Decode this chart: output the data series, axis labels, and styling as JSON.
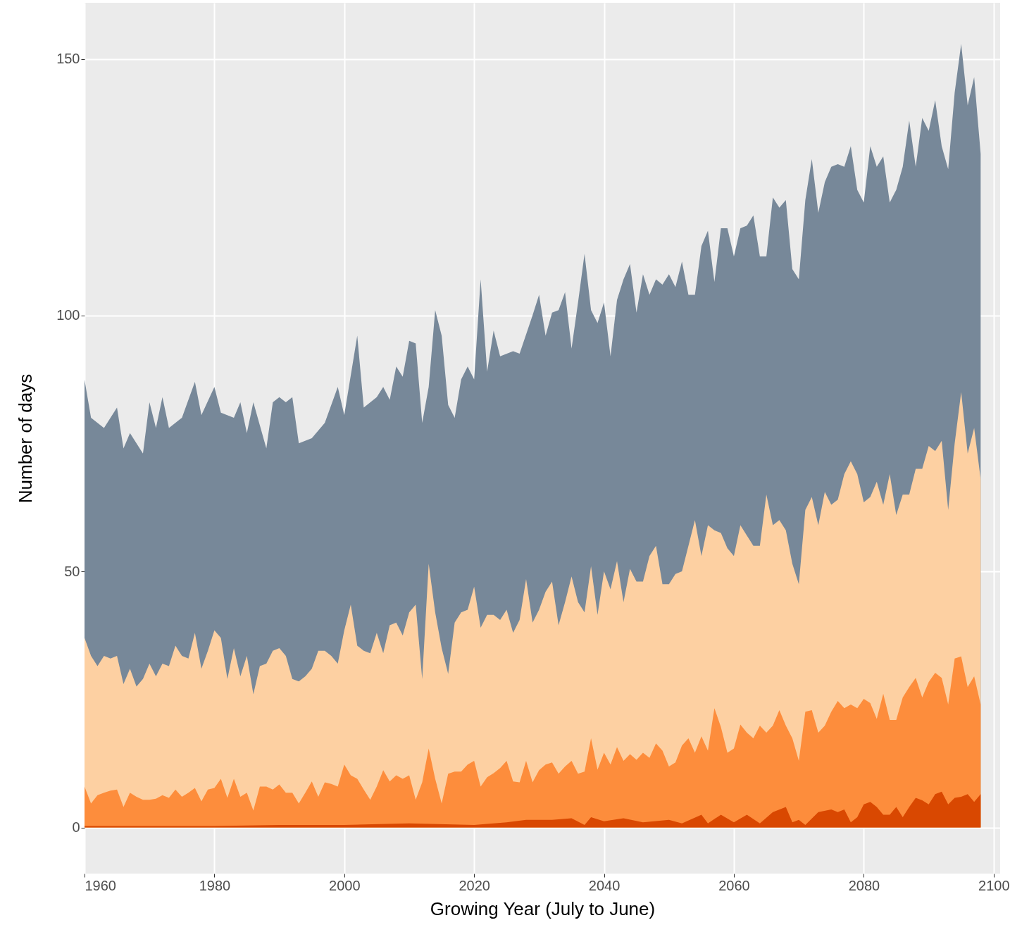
{
  "chart_data": {
    "type": "area",
    "xlabel": "Growing Year (July to June)",
    "ylabel": "Number of days",
    "xlim": [
      1960,
      2101
    ],
    "ylim": [
      -9,
      161
    ],
    "xticks": [
      1960,
      1980,
      2000,
      2020,
      2040,
      2060,
      2080,
      2100
    ],
    "yticks": [
      0,
      50,
      100,
      150
    ],
    "grid": true,
    "series": [
      {
        "color": "#778899",
        "x": [
          1960,
          1961,
          1963,
          1965,
          1966,
          1967,
          1969,
          1970,
          1971,
          1972,
          1973,
          1975,
          1977,
          1978,
          1980,
          1981,
          1983,
          1984,
          1985,
          1986,
          1988,
          1989,
          1990,
          1991,
          1992,
          1993,
          1995,
          1997,
          1999,
          2000,
          2002,
          2003,
          2005,
          2006,
          2007,
          2008,
          2009,
          2010,
          2011,
          2012,
          2013,
          2014,
          2015,
          2016,
          2017,
          2018,
          2019,
          2020,
          2021,
          2022,
          2023,
          2024,
          2026,
          2027,
          2029,
          2030,
          2031,
          2032,
          2033,
          2034,
          2035,
          2036,
          2037,
          2038,
          2039,
          2040,
          2041,
          2042,
          2043,
          2044,
          2045,
          2046,
          2047,
          2048,
          2049,
          2050,
          2051,
          2052,
          2053,
          2054,
          2055,
          2056,
          2057,
          2058,
          2059,
          2060,
          2061,
          2062,
          2063,
          2064,
          2065,
          2066,
          2067,
          2068,
          2069,
          2070,
          2071,
          2072,
          2073,
          2074,
          2075,
          2076,
          2077,
          2078,
          2079,
          2080,
          2081,
          2082,
          2083,
          2084,
          2085,
          2086,
          2087,
          2088,
          2089,
          2090,
          2091,
          2092,
          2093,
          2094,
          2095,
          2096,
          2097,
          2098
        ],
        "values": [
          87.4,
          80,
          78,
          82,
          74,
          77,
          73,
          83,
          78,
          84,
          78,
          80,
          87,
          80.5,
          86,
          81,
          80,
          83,
          77,
          83,
          74,
          83,
          84,
          83,
          84,
          75,
          76,
          79,
          86,
          80.5,
          96,
          82,
          84,
          86,
          83.5,
          90,
          88,
          95,
          94.5,
          79,
          86,
          101,
          96,
          82.5,
          80,
          87.5,
          90,
          87.5,
          107,
          89,
          97,
          92,
          93,
          92.5,
          100,
          104,
          96,
          100.5,
          101,
          104.5,
          93.5,
          102.5,
          112,
          101,
          98.5,
          102.5,
          92,
          103,
          107,
          110,
          100.5,
          108,
          104,
          107,
          106,
          108,
          105.5,
          110.5,
          104,
          104,
          113.5,
          116.5,
          106.5,
          117,
          117,
          111.5,
          117,
          117.5,
          119.5,
          111.5,
          111.5,
          123,
          121,
          122.5,
          109,
          107,
          122.5,
          130.5,
          120,
          126,
          129,
          129.5,
          129,
          133,
          124.5,
          122,
          133,
          129,
          131,
          122,
          124.5,
          129,
          138,
          129,
          138.5,
          136,
          142,
          133,
          128.5,
          143.5,
          153,
          141,
          146.5,
          131.5
        ]
      },
      {
        "color": "#fdd0a2",
        "x": [
          1960,
          1961,
          1962,
          1963,
          1964,
          1965,
          1966,
          1967,
          1968,
          1969,
          1970,
          1971,
          1972,
          1973,
          1974,
          1975,
          1976,
          1977,
          1978,
          1979,
          1980,
          1981,
          1982,
          1983,
          1984,
          1985,
          1986,
          1987,
          1988,
          1989,
          1990,
          1991,
          1992,
          1993,
          1994,
          1995,
          1996,
          1997,
          1998,
          1999,
          2000,
          2001,
          2002,
          2003,
          2004,
          2005,
          2006,
          2007,
          2008,
          2009,
          2010,
          2011,
          2012,
          2013,
          2014,
          2015,
          2016,
          2017,
          2018,
          2019,
          2020,
          2021,
          2022,
          2023,
          2024,
          2025,
          2026,
          2027,
          2028,
          2029,
          2030,
          2031,
          2032,
          2033,
          2034,
          2035,
          2036,
          2037,
          2038,
          2039,
          2040,
          2041,
          2042,
          2043,
          2044,
          2045,
          2046,
          2047,
          2048,
          2049,
          2050,
          2051,
          2052,
          2053,
          2054,
          2055,
          2056,
          2057,
          2058,
          2059,
          2060,
          2061,
          2062,
          2063,
          2064,
          2065,
          2066,
          2067,
          2068,
          2069,
          2070,
          2071,
          2072,
          2073,
          2074,
          2075,
          2076,
          2077,
          2078,
          2079,
          2080,
          2081,
          2082,
          2083,
          2084,
          2085,
          2086,
          2087,
          2088,
          2089,
          2090,
          2091,
          2092,
          2093,
          2094,
          2095,
          2096,
          2097,
          2098
        ],
        "values": [
          37,
          33.5,
          31.5,
          33.5,
          33,
          33.5,
          28,
          31,
          27.5,
          29,
          32,
          29.5,
          32,
          31.5,
          35.5,
          33.5,
          33,
          38,
          31,
          34.5,
          38.5,
          37,
          29,
          35,
          29.5,
          33.5,
          26,
          31.5,
          32,
          34.5,
          35,
          33.5,
          29,
          28.5,
          29.5,
          31,
          34.5,
          34.5,
          33.5,
          32,
          38.5,
          43.5,
          35.5,
          34.5,
          34,
          38,
          34,
          39.5,
          40,
          37.5,
          42,
          43.5,
          29,
          51.5,
          42,
          35,
          30,
          40,
          42,
          42.5,
          47,
          39,
          41.5,
          41.5,
          40.5,
          42.5,
          38,
          40.5,
          48.5,
          40,
          42.5,
          46,
          48,
          39.5,
          44,
          49,
          44,
          42,
          51,
          41.5,
          50,
          46.5,
          52,
          44,
          50.5,
          48,
          48,
          53,
          55,
          47.5,
          47.5,
          49.5,
          50,
          55,
          60,
          53,
          59,
          58,
          57.5,
          54.5,
          53,
          59,
          57,
          55,
          55,
          65,
          59,
          60,
          58,
          51.5,
          47.5,
          62,
          64.5,
          59,
          65.5,
          63,
          64,
          69,
          71.5,
          69,
          63.5,
          64.5,
          67.5,
          63,
          69,
          61,
          65,
          65,
          70,
          70,
          74.5,
          73.5,
          75.5,
          62,
          75,
          85,
          73,
          78,
          68
        ]
      },
      {
        "color": "#fd8d3c",
        "x": [
          1960,
          1961,
          1962,
          1963,
          1964,
          1965,
          1966,
          1967,
          1968,
          1969,
          1970,
          1971,
          1972,
          1973,
          1974,
          1975,
          1976,
          1977,
          1978,
          1979,
          1980,
          1981,
          1982,
          1983,
          1984,
          1985,
          1986,
          1987,
          1988,
          1989,
          1990,
          1991,
          1992,
          1993,
          1994,
          1995,
          1996,
          1997,
          1998,
          1999,
          2000,
          2001,
          2002,
          2003,
          2004,
          2005,
          2006,
          2007,
          2008,
          2009,
          2010,
          2011,
          2012,
          2013,
          2014,
          2015,
          2016,
          2017,
          2018,
          2019,
          2020,
          2021,
          2022,
          2023,
          2024,
          2025,
          2026,
          2027,
          2028,
          2029,
          2030,
          2031,
          2032,
          2033,
          2034,
          2035,
          2036,
          2037,
          2038,
          2039,
          2040,
          2041,
          2042,
          2043,
          2044,
          2045,
          2046,
          2047,
          2048,
          2049,
          2050,
          2051,
          2052,
          2053,
          2054,
          2055,
          2056,
          2057,
          2058,
          2059,
          2060,
          2061,
          2062,
          2063,
          2064,
          2065,
          2066,
          2067,
          2068,
          2069,
          2070,
          2071,
          2072,
          2073,
          2074,
          2075,
          2076,
          2077,
          2078,
          2079,
          2080,
          2081,
          2082,
          2083,
          2084,
          2085,
          2086,
          2087,
          2088,
          2089,
          2090,
          2091,
          2092,
          2093,
          2094,
          2095,
          2096,
          2097,
          2098
        ],
        "values": [
          8,
          4.7,
          6.3,
          6.8,
          7.2,
          7.4,
          4,
          6.8,
          6,
          5.4,
          5.4,
          5.6,
          6.3,
          5.8,
          7.4,
          6,
          6.8,
          7.7,
          5.1,
          7.4,
          7.7,
          9.5,
          5.8,
          9.5,
          6,
          6.8,
          3.3,
          8,
          8,
          7.4,
          8.4,
          6.8,
          6.8,
          4.7,
          6.8,
          9,
          6,
          8.8,
          8.5,
          8,
          12.3,
          10.2,
          9.5,
          7.4,
          5.4,
          8,
          11.2,
          9,
          10.2,
          9.5,
          10.2,
          5.4,
          8.8,
          15.4,
          9.5,
          4.7,
          10.5,
          10.9,
          10.9,
          12.3,
          13,
          8,
          9.8,
          10.6,
          11.6,
          13,
          9,
          8.8,
          13,
          8.8,
          11.2,
          12.3,
          12.7,
          10.5,
          11.9,
          13,
          10.5,
          10.9,
          17.4,
          11.3,
          14.6,
          12.3,
          15.7,
          13,
          14.3,
          13.2,
          14.6,
          13.6,
          16.4,
          15,
          11.9,
          12.7,
          16,
          17.4,
          14.6,
          17.8,
          15,
          23.3,
          19.6,
          14.6,
          15.4,
          20.1,
          18.5,
          17.4,
          19.9,
          18.5,
          19.9,
          22.9,
          19.9,
          17.4,
          13,
          22.6,
          22.9,
          18.5,
          19.9,
          22.6,
          24.7,
          23.3,
          24,
          23.3,
          25.1,
          24.3,
          21.2,
          26.1,
          21,
          21,
          25.4,
          27.4,
          29.2,
          25.4,
          28.4,
          30.2,
          29.2,
          24,
          33,
          33.4,
          27.4,
          29.5,
          24
        ]
      },
      {
        "color": "#d94801",
        "x": [
          1960,
          1970,
          1980,
          1990,
          2000,
          2010,
          2020,
          2025,
          2028,
          2032,
          2035,
          2037,
          2038,
          2040,
          2043,
          2046,
          2050,
          2052,
          2055,
          2056,
          2058,
          2060,
          2062,
          2064,
          2066,
          2068,
          2069,
          2070,
          2071,
          2073,
          2075,
          2076,
          2077,
          2078,
          2079,
          2080,
          2081,
          2082,
          2083,
          2084,
          2085,
          2086,
          2087,
          2088,
          2089,
          2090,
          2091,
          2092,
          2093,
          2094,
          2095,
          2096,
          2097,
          2098
        ],
        "values": [
          0.3,
          0.3,
          0.3,
          0.5,
          0.5,
          0.8,
          0.5,
          1,
          1.5,
          1.5,
          1.8,
          0.5,
          2,
          1.2,
          1.8,
          1,
          1.5,
          0.8,
          2.5,
          0.8,
          2.5,
          1,
          2.5,
          0.8,
          3,
          4,
          1,
          1.5,
          0.5,
          3,
          3.5,
          3,
          3.5,
          1,
          2,
          4.5,
          5,
          4,
          2.5,
          2.5,
          4,
          2,
          4,
          5.8,
          5.3,
          4.5,
          6.5,
          7,
          4.5,
          5.8,
          6,
          6.5,
          5,
          6.5
        ]
      }
    ]
  }
}
